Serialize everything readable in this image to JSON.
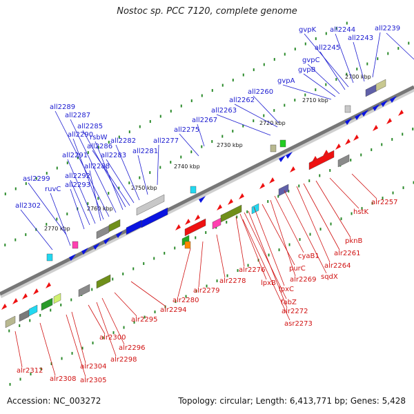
{
  "title": "Nostoc sp. PCC 7120, complete genome",
  "footer": {
    "accession": "Accession: NC_003272",
    "stats": "Topology: circular; Length: 6,413,771 bp; Genes: 5,428"
  },
  "colors": {
    "forward_label": "#1a1ad0",
    "reverse_label": "#d01010",
    "forward_gene": "#0a14e0",
    "reverse_gene": "#ee1111",
    "tick": "#2a8a2a",
    "backbone": "#777777"
  },
  "scale_labels": [
    "2700 kbp",
    "2710 kbp",
    "2720 kbp",
    "2730 kbp",
    "2740 kbp",
    "2750 kbp",
    "2760 kbp",
    "2770 kbp"
  ],
  "forward_labels": [
    "all2239",
    "all2243",
    "all2244",
    "gvpK",
    "all2245",
    "gvpC",
    "gvpB",
    "gvpA",
    "all2260",
    "all2262",
    "all2263",
    "all2267",
    "all2275",
    "all2277",
    "all2281",
    "all2282",
    "all2283",
    "all2286",
    "all2285",
    "rsbW",
    "all2287",
    "all2289",
    "all2290",
    "all2288",
    "all2291",
    "all2292",
    "all2293",
    "asl2299",
    "ruvC",
    "all2302"
  ],
  "reverse_labels": [
    "alr2257",
    "hstK",
    "pknB",
    "alr2261",
    "alr2264",
    "sqdX",
    "cyaB1",
    "alr2269",
    "purC",
    "lpxC",
    "alr2272",
    "fabZ",
    "lpxB",
    "alr2276",
    "asr2273",
    "alr2278",
    "alr2279",
    "alr2280",
    "alr2294",
    "alr2295",
    "alr2296",
    "alr2298",
    "alr2300",
    "alr2304",
    "alr2305",
    "alr2308",
    "alr2312"
  ]
}
